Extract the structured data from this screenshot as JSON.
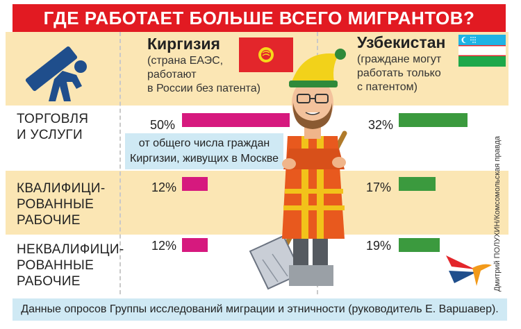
{
  "title": "ГДЕ РАБОТАЕТ БОЛЬШЕ ВСЕГО МИГРАНТОВ?",
  "columns": {
    "kg": {
      "name": "Киргизия",
      "subtitle": [
        "(страна ЕАЭС,",
        "работают",
        "в России без патента)"
      ]
    },
    "uz": {
      "name": "Узбекистан",
      "subtitle": [
        "(граждане могут",
        "работать только",
        "с патентом)"
      ]
    }
  },
  "rows": [
    {
      "label": [
        "ТОРГОВЛЯ",
        "И УСЛУГИ"
      ],
      "kg": "50%",
      "uz": "32%"
    },
    {
      "label": [
        "КВАЛИФИЦИ-",
        "РОВАННЫЕ",
        "РАБОЧИЕ"
      ],
      "kg": "12%",
      "uz": "17%"
    },
    {
      "label": [
        "НЕКВАЛИФИЦИ-",
        "РОВАННЫЕ",
        "РАБОЧИЕ"
      ],
      "kg": "12%",
      "uz": "19%"
    }
  ],
  "chart_data": {
    "type": "bar",
    "categories": [
      "ТОРГОВЛЯ И УСЛУГИ",
      "КВАЛИФИЦИРОВАННЫЕ РАБОЧИЕ",
      "НЕКВАЛИФИЦИРОВАННЫЕ РАБОЧИЕ"
    ],
    "series": [
      {
        "name": "Киргизия",
        "values": [
          50,
          12,
          12
        ],
        "color": "#d6197e"
      },
      {
        "name": "Узбекистан",
        "values": [
          32,
          17,
          19
        ],
        "color": "#3b9a3e"
      }
    ]
  },
  "note": [
    "от общего числа граждан",
    "Киргизии, живущих в Москве"
  ],
  "footer": "Данные опросов Группы исследований миграции и этничности (руководитель Е. Варшавер).",
  "credit": "Дмитрий ПОЛУХИН/Комсомольская правда",
  "colors": {
    "title_bg": "#e21a22",
    "band": "#fbe6b4",
    "kg_bar": "#d6197e",
    "uz_bar": "#3b9a3e",
    "note_bg": "#cfe9f4"
  }
}
